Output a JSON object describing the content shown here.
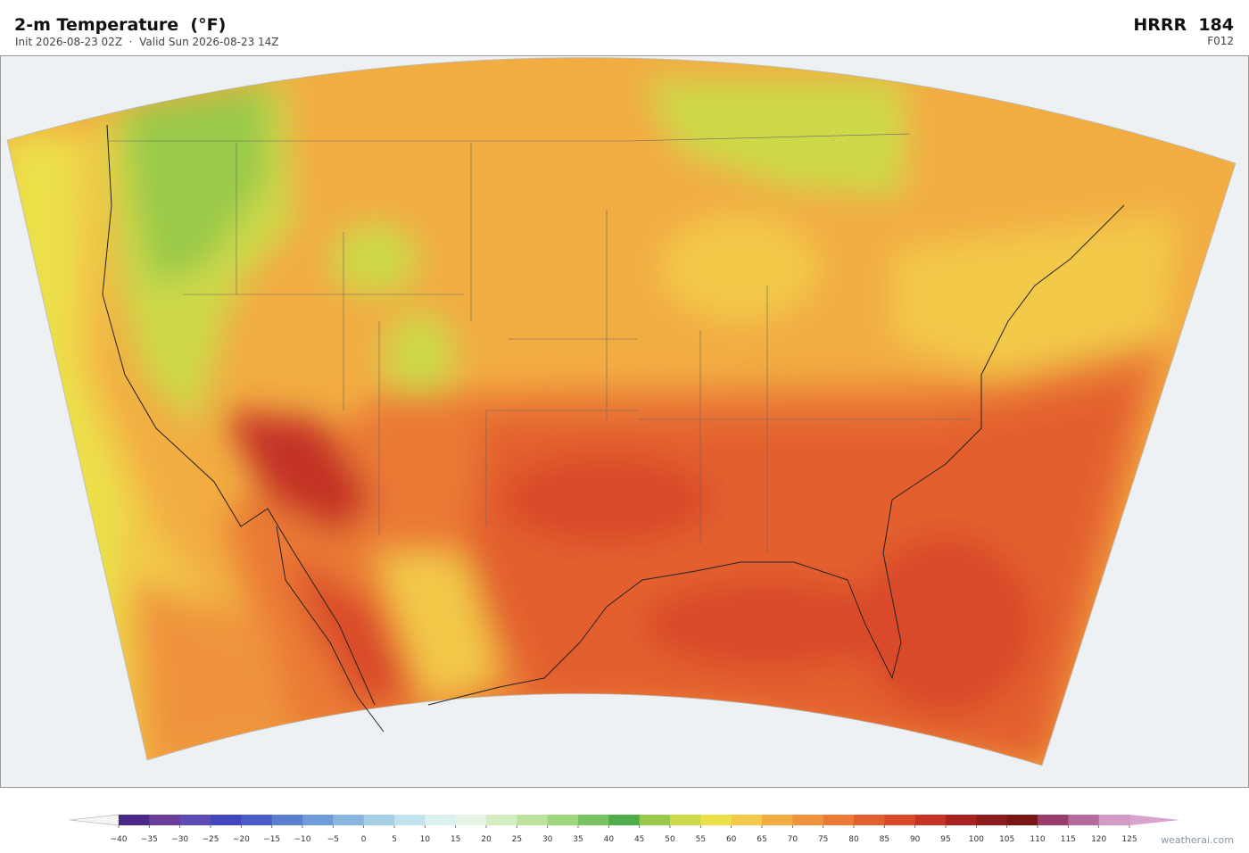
{
  "header": {
    "title": "2-m Temperature  (°F)",
    "subtitle": "Init 2026-08-23 02Z  ·  Valid Sun 2026-08-23 14Z",
    "model": "HRRR  184",
    "forecast_hour": "F012"
  },
  "colorbar": {
    "ticks": [
      {
        "value": -40,
        "label": "−40"
      },
      {
        "value": -35,
        "label": "−35"
      },
      {
        "value": -30,
        "label": "−30"
      },
      {
        "value": -25,
        "label": "−25"
      },
      {
        "value": -20,
        "label": "−20"
      },
      {
        "value": -15,
        "label": "−15"
      },
      {
        "value": -10,
        "label": "−10"
      },
      {
        "value": -5,
        "label": "−5"
      },
      0,
      5,
      10,
      15,
      20,
      25,
      30,
      35,
      40,
      45,
      50,
      55,
      60,
      65,
      70,
      75,
      80,
      85,
      90,
      95,
      100,
      105,
      110,
      115,
      120,
      125
    ],
    "colors": [
      "#4a2889",
      "#6a3d9a",
      "#5e4bb5",
      "#4446bd",
      "#4a5ec8",
      "#5b7fd0",
      "#6f9bd8",
      "#8ab6de",
      "#a6cfe6",
      "#c2e2ee",
      "#dcf0f0",
      "#e6f5e3",
      "#d3ecc0",
      "#bde29b",
      "#9dd67c",
      "#78c462",
      "#4fae4a",
      "#99c94a",
      "#cdd94a",
      "#ece04a",
      "#f2c94a",
      "#f2ad42",
      "#ef943c",
      "#ea7a35",
      "#e3602e",
      "#d9492a",
      "#c43326",
      "#a82222",
      "#8c1b1b",
      "#7a1616",
      "#9a3d6a",
      "#b56aa0",
      "#d49ac6"
    ],
    "under_color": "#f4f4f4",
    "over_color": "#d9a3cf"
  },
  "credit": "weatherai.com"
}
